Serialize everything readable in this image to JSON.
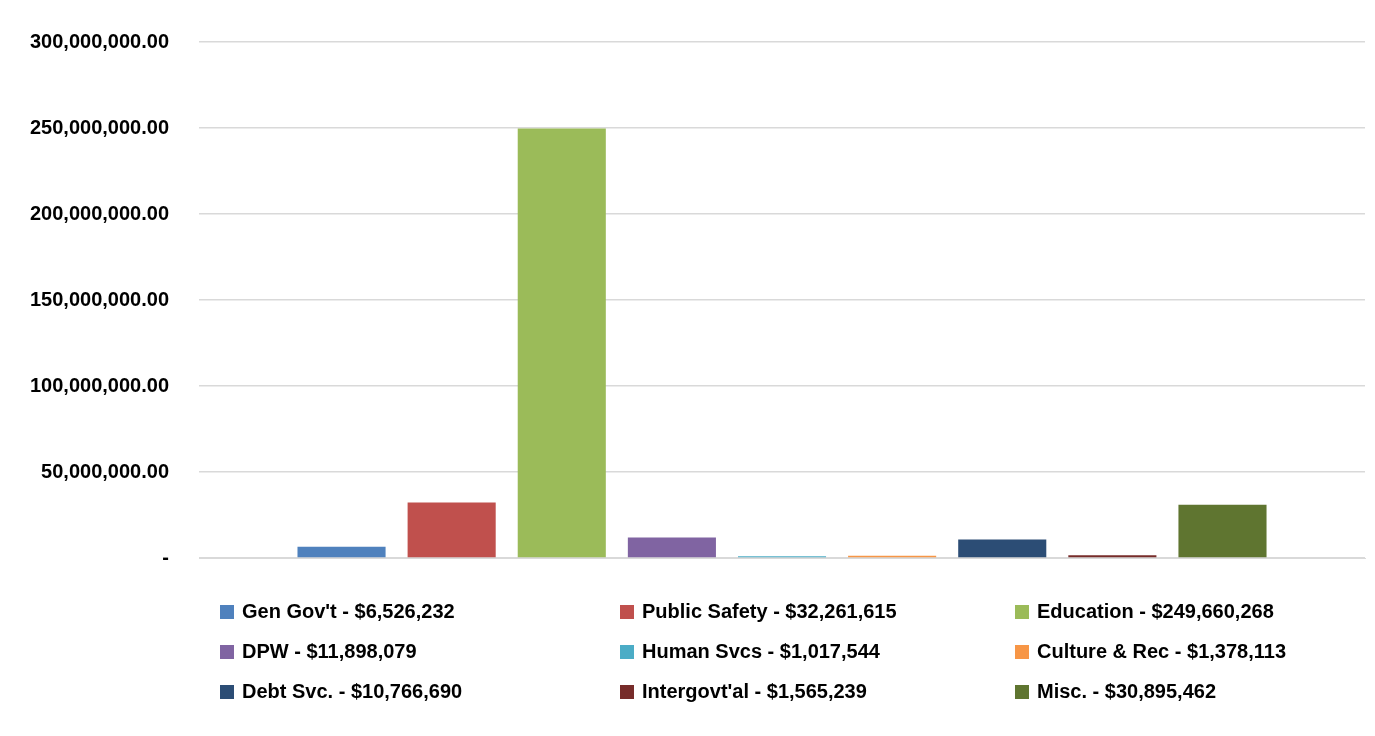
{
  "chart_data": {
    "type": "bar",
    "categories": [
      null
    ],
    "series": [
      {
        "name": "Gen Gov't - $6,526,232",
        "color": "#4f81bd",
        "values": [
          6526232
        ]
      },
      {
        "name": "Public Safety - $32,261,615",
        "color": "#c0504d",
        "values": [
          32261615
        ]
      },
      {
        "name": "Education - $249,660,268",
        "color": "#9bbb59",
        "values": [
          249660268
        ]
      },
      {
        "name": "DPW - $11,898,079",
        "color": "#8064a2",
        "values": [
          11898079
        ]
      },
      {
        "name": "Human Svcs - $1,017,544",
        "color": "#4bacc6",
        "values": [
          1017544
        ]
      },
      {
        "name": "Culture & Rec - $1,378,113",
        "color": "#f79646",
        "values": [
          1378113
        ]
      },
      {
        "name": "Debt Svc. - $10,766,690",
        "color": "#2c4d75",
        "values": [
          10766690
        ]
      },
      {
        "name": "Intergovt'al - $1,565,239",
        "color": "#772c2a",
        "values": [
          1565239
        ]
      },
      {
        "name": "Misc. - $30,895,462",
        "color": "#5f7530",
        "values": [
          30895462
        ]
      }
    ],
    "ylim": [
      0,
      300000000
    ],
    "yticks": [
      {
        "value": 0,
        "label": "-"
      },
      {
        "value": 50000000,
        "label": "50,000,000.00"
      },
      {
        "value": 100000000,
        "label": "100,000,000.00"
      },
      {
        "value": 150000000,
        "label": "150,000,000.00"
      },
      {
        "value": 200000000,
        "label": "200,000,000.00"
      },
      {
        "value": 250000000,
        "label": "250,000,000.00"
      },
      {
        "value": 300000000,
        "label": "300,000,000.00"
      }
    ],
    "grid": "y",
    "legend": "bottom"
  }
}
